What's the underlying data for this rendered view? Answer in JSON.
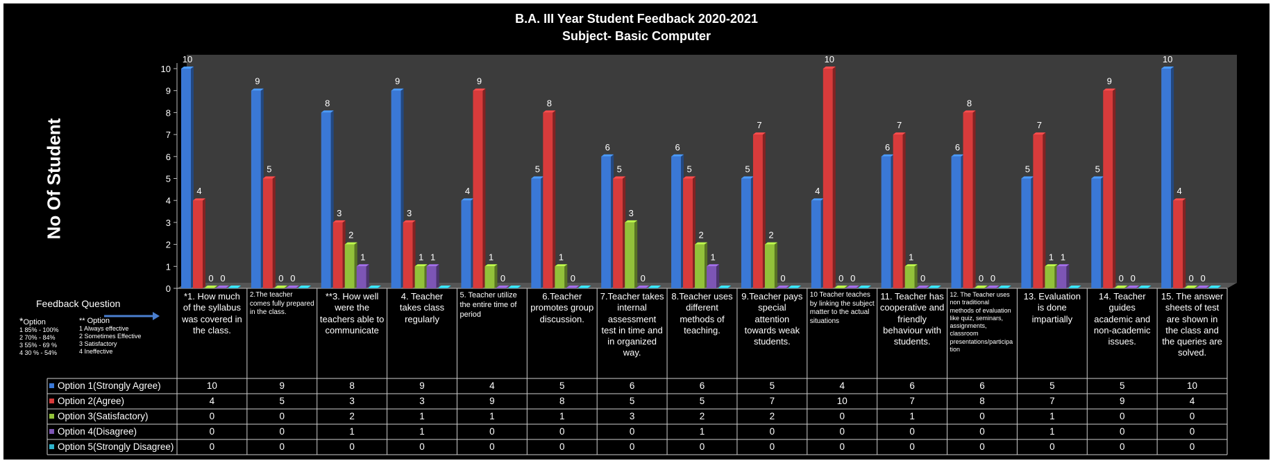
{
  "chart_data": {
    "type": "bar",
    "title": "B.A. III Year Student Feedback 2020-2021",
    "subtitle": "Subject- Basic Computer",
    "ylabel": "No Of Student",
    "ylim": [
      0,
      10
    ],
    "yticks": [
      0,
      1,
      2,
      3,
      4,
      5,
      6,
      7,
      8,
      9,
      10
    ],
    "grid": false,
    "categories": [
      "*1. How much of the syllabus was covered in the class.",
      "2.The teacher comes fully prepared in the class.",
      "**3. How well were the teachers able to communicate",
      "4. Teacher takes class regularly",
      "5. Teacher utilize the entire time of period",
      "6.Teacher promotes group discussion.",
      "7.Teacher takes internal assessment test in time and in organized way.",
      "8.Teacher uses different methods of teaching.",
      "9.Teacher pays special attention towards weak students.",
      "10 Teacher teaches by linking the subject matter to the actual situations",
      "11. Teacher has cooperative and friendly behaviour with students.",
      "12. The Teacher uses non traditional methods of evaluation like quiz, seminars, assignments, classroom presentations/participa tion",
      "13. Evaluation is done impartially",
      "14. Teacher guides academic and non-academic issues.",
      "15. The answer sheets of test are shown in the class and the queries are solved."
    ],
    "series": [
      {
        "name": "Option 1(Strongly Agree)",
        "color": "#3a78d6",
        "values": [
          10,
          9,
          8,
          9,
          4,
          5,
          6,
          6,
          5,
          4,
          6,
          6,
          5,
          5,
          10
        ]
      },
      {
        "name": "Option 2(Agree)",
        "color": "#d83b3b",
        "values": [
          4,
          5,
          3,
          3,
          9,
          8,
          5,
          5,
          7,
          10,
          7,
          8,
          7,
          9,
          4
        ]
      },
      {
        "name": "Option 3(Satisfactory)",
        "color": "#92c13a",
        "values": [
          0,
          0,
          2,
          1,
          1,
          1,
          3,
          2,
          2,
          0,
          1,
          0,
          1,
          0,
          0
        ]
      },
      {
        "name": "Option 4(Disagree)",
        "color": "#7d55b5",
        "values": [
          0,
          0,
          1,
          1,
          0,
          0,
          0,
          1,
          0,
          0,
          0,
          0,
          1,
          0,
          0
        ]
      },
      {
        "name": "Option 5(Strongly Disagree)",
        "color": "#2fb3cc",
        "values": [
          0,
          0,
          0,
          0,
          0,
          0,
          0,
          0,
          0,
          0,
          0,
          0,
          0,
          0,
          0
        ]
      }
    ],
    "legend": "bottom-table"
  },
  "table_header": "Feedback  Question",
  "option_key": {
    "col1_header": "Option",
    "col1_star": "*",
    "col1_items": [
      "1 85% - 100%",
      "2 70% - 84%",
      "3 55% - 69 %",
      "4 30 % - 54%"
    ],
    "col2_header": "** Option",
    "col2_items": [
      "1 Always effective",
      "2 Sometimes Effective",
      "3 Satisfactory",
      "4 Ineffective"
    ]
  }
}
